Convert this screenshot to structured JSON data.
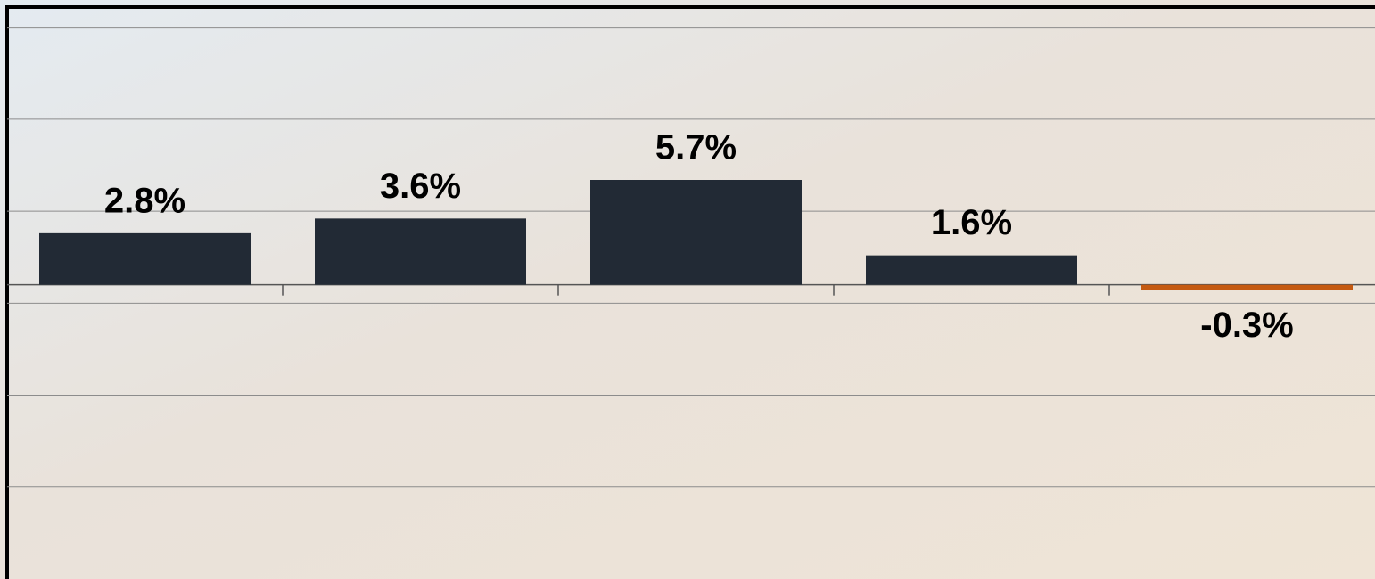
{
  "chart_data": {
    "type": "bar",
    "categories": [
      null,
      null,
      null,
      null,
      null
    ],
    "values": [
      2.8,
      3.6,
      5.7,
      1.6,
      -0.3
    ],
    "value_labels": [
      "2.8%",
      "3.6%",
      "5.7%",
      "1.6%",
      "-0.3%"
    ],
    "colors": [
      "#222a35",
      "#222a35",
      "#222a35",
      "#222a35",
      "#c55a11"
    ],
    "ylim": [
      -16,
      15
    ],
    "yticks": [
      -11,
      -6,
      -1,
      4,
      9,
      14
    ],
    "grid": true
  }
}
